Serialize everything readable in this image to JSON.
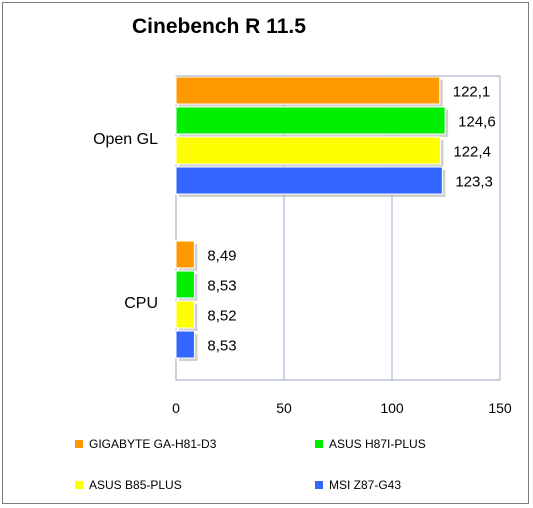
{
  "chart_data": {
    "type": "bar",
    "orientation": "horizontal",
    "title": "Cinebench R 11.5",
    "categories": [
      "Open GL",
      "CPU"
    ],
    "series": [
      {
        "name": "GIGABYTE GA-H81-D3",
        "color": "#ff9900",
        "values": [
          122.1,
          8.49
        ],
        "labels": [
          "122,1",
          "8,49"
        ]
      },
      {
        "name": "ASUS H87I-PLUS",
        "color": "#00ee00",
        "values": [
          124.6,
          8.53
        ],
        "labels": [
          "124,6",
          "8,53"
        ]
      },
      {
        "name": "ASUS B85-PLUS",
        "color": "#ffff00",
        "values": [
          122.4,
          8.52
        ],
        "labels": [
          "122,4",
          "8,52"
        ]
      },
      {
        "name": "MSI Z87-G43",
        "color": "#3366ff",
        "values": [
          123.3,
          8.53
        ],
        "labels": [
          "123,3",
          "8,53"
        ]
      }
    ],
    "xlim": [
      0,
      150
    ],
    "xticks": [
      "0",
      "50",
      "100",
      "150"
    ],
    "grid": "vertical",
    "legend_position": "bottom"
  }
}
